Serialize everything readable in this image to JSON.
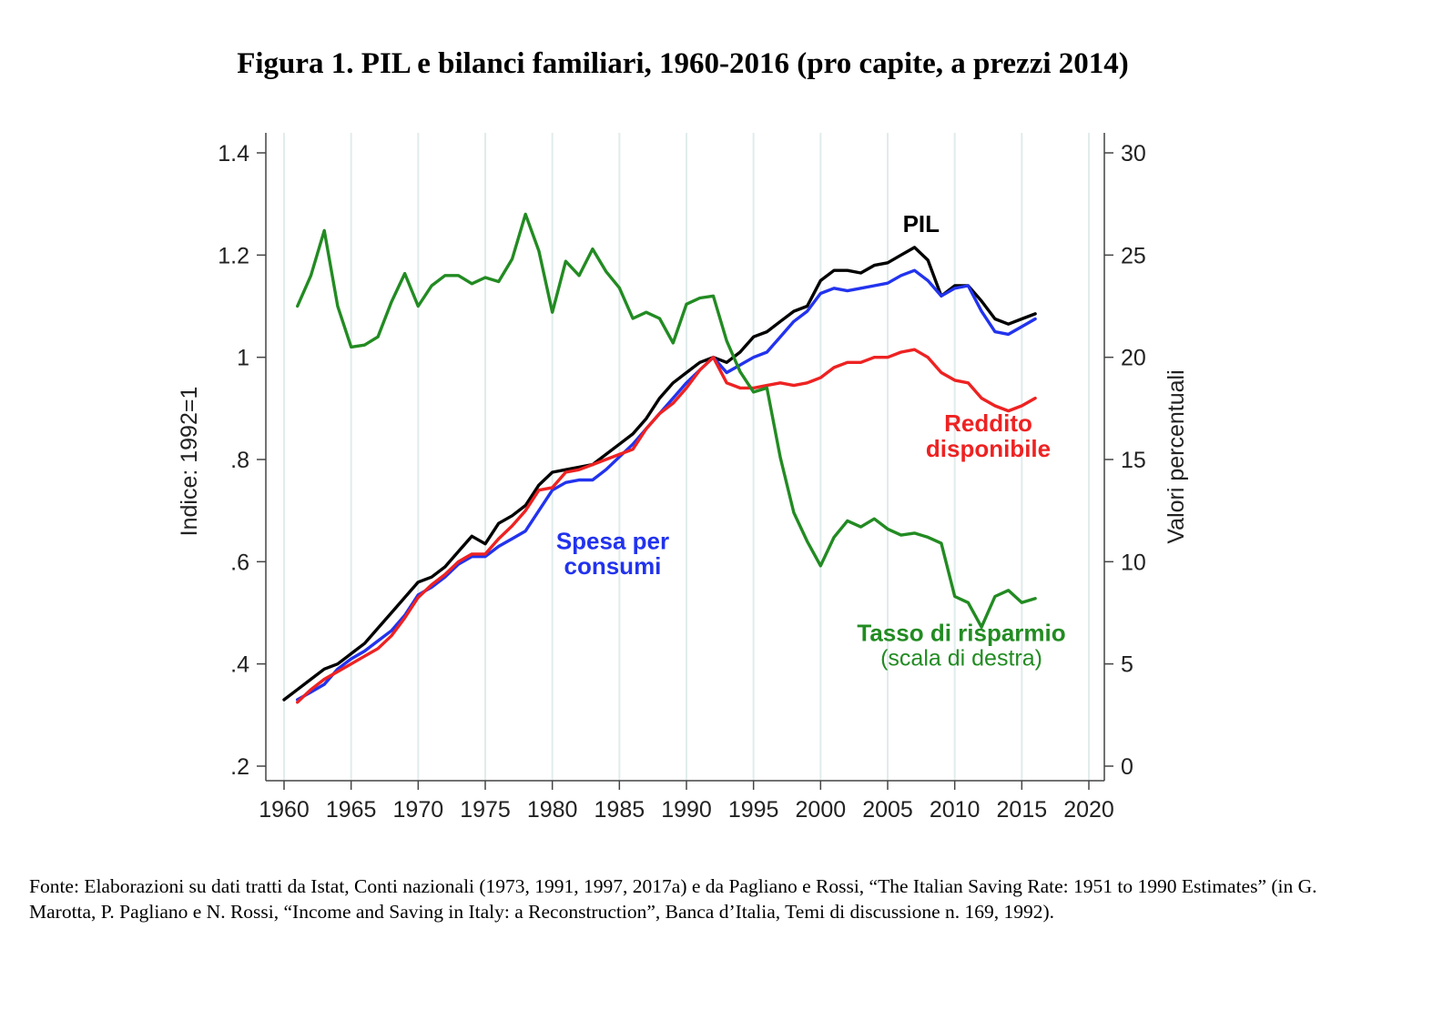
{
  "page": {
    "title": "Figura 1. PIL e bilanci familiari, 1960-2016 (pro capite, a prezzi 2014)",
    "source_note": "Fonte: Elaborazioni su dati tratti da Istat, Conti nazionali (1973, 1991, 1997, 2017a) e da Pagliano e Rossi, “The Italian Saving Rate: 1951 to 1990 Estimates” (in G. Marotta, P. Pagliano e N. Rossi, “Income and Saving in Italy: a Reconstruction”, Banca d’Italia, Temi di discussione n. 169, 1992)."
  },
  "chart_data": {
    "type": "line",
    "title": "Figura 1. PIL e bilanci familiari, 1960-2016 (pro capite, a prezzi 2014)",
    "xlabel": "",
    "ylabel": "Indice: 1992=1",
    "y2label": "Valori percentuali",
    "xlim": [
      1960,
      2020
    ],
    "ylim": [
      0.2,
      1.4
    ],
    "y2lim": [
      0,
      30
    ],
    "x_ticks": [
      1960,
      1965,
      1970,
      1975,
      1980,
      1985,
      1990,
      1995,
      2000,
      2005,
      2010,
      2015,
      2020
    ],
    "y_ticks": [
      {
        "value": 0.2,
        "label": ".2"
      },
      {
        "value": 0.4,
        "label": ".4"
      },
      {
        "value": 0.6,
        "label": ".6"
      },
      {
        "value": 0.8,
        "label": ".8"
      },
      {
        "value": 1.0,
        "label": "1"
      },
      {
        "value": 1.2,
        "label": "1.2"
      },
      {
        "value": 1.4,
        "label": "1.4"
      }
    ],
    "y2_ticks": [
      0,
      5,
      10,
      15,
      20,
      25,
      30
    ],
    "grid": "vertical",
    "legend": "none (inline labels)",
    "series": [
      {
        "name": "PIL",
        "color": "#000000",
        "axis": "left",
        "x": [
          1960,
          1961,
          1962,
          1963,
          1964,
          1965,
          1966,
          1967,
          1968,
          1969,
          1970,
          1971,
          1972,
          1973,
          1974,
          1975,
          1976,
          1977,
          1978,
          1979,
          1980,
          1981,
          1982,
          1983,
          1984,
          1985,
          1986,
          1987,
          1988,
          1989,
          1990,
          1991,
          1992,
          1993,
          1994,
          1995,
          1996,
          1997,
          1998,
          1999,
          2000,
          2001,
          2002,
          2003,
          2004,
          2005,
          2006,
          2007,
          2008,
          2009,
          2010,
          2011,
          2012,
          2013,
          2014,
          2015,
          2016
        ],
        "values": [
          0.33,
          0.35,
          0.37,
          0.39,
          0.4,
          0.42,
          0.44,
          0.47,
          0.5,
          0.53,
          0.56,
          0.57,
          0.59,
          0.62,
          0.65,
          0.635,
          0.675,
          0.69,
          0.71,
          0.75,
          0.775,
          0.78,
          0.785,
          0.79,
          0.81,
          0.83,
          0.85,
          0.88,
          0.92,
          0.95,
          0.97,
          0.99,
          1.0,
          0.99,
          1.01,
          1.04,
          1.05,
          1.07,
          1.09,
          1.1,
          1.15,
          1.17,
          1.17,
          1.165,
          1.18,
          1.185,
          1.2,
          1.215,
          1.19,
          1.12,
          1.14,
          1.14,
          1.11,
          1.075,
          1.065,
          1.075,
          1.085
        ]
      },
      {
        "name": "Spesa per consumi",
        "color": "#2233ee",
        "axis": "left",
        "x": [
          1961,
          1962,
          1963,
          1964,
          1965,
          1966,
          1967,
          1968,
          1969,
          1970,
          1971,
          1972,
          1973,
          1974,
          1975,
          1976,
          1977,
          1978,
          1979,
          1980,
          1981,
          1982,
          1983,
          1984,
          1985,
          1986,
          1987,
          1988,
          1989,
          1990,
          1991,
          1992,
          1993,
          1994,
          1995,
          1996,
          1997,
          1998,
          1999,
          2000,
          2001,
          2002,
          2003,
          2004,
          2005,
          2006,
          2007,
          2008,
          2009,
          2010,
          2011,
          2012,
          2013,
          2014,
          2015,
          2016
        ],
        "values": [
          0.33,
          0.345,
          0.36,
          0.39,
          0.41,
          0.425,
          0.445,
          0.465,
          0.495,
          0.535,
          0.55,
          0.57,
          0.595,
          0.61,
          0.61,
          0.63,
          0.645,
          0.66,
          0.7,
          0.74,
          0.755,
          0.76,
          0.76,
          0.78,
          0.805,
          0.83,
          0.86,
          0.89,
          0.92,
          0.95,
          0.975,
          1.0,
          0.97,
          0.985,
          1.0,
          1.01,
          1.04,
          1.07,
          1.09,
          1.125,
          1.135,
          1.13,
          1.135,
          1.14,
          1.145,
          1.16,
          1.17,
          1.15,
          1.12,
          1.135,
          1.14,
          1.09,
          1.05,
          1.045,
          1.06,
          1.075
        ]
      },
      {
        "name": "Reddito disponibile",
        "color": "#ee2222",
        "axis": "left",
        "x": [
          1961,
          1962,
          1963,
          1964,
          1965,
          1966,
          1967,
          1968,
          1969,
          1970,
          1971,
          1972,
          1973,
          1974,
          1975,
          1976,
          1977,
          1978,
          1979,
          1980,
          1981,
          1982,
          1983,
          1984,
          1985,
          1986,
          1987,
          1988,
          1989,
          1990,
          1991,
          1992,
          1993,
          1994,
          1995,
          1996,
          1997,
          1998,
          1999,
          2000,
          2001,
          2002,
          2003,
          2004,
          2005,
          2006,
          2007,
          2008,
          2009,
          2010,
          2011,
          2012,
          2013,
          2014,
          2015,
          2016
        ],
        "values": [
          0.325,
          0.35,
          0.37,
          0.385,
          0.4,
          0.415,
          0.43,
          0.455,
          0.49,
          0.53,
          0.555,
          0.575,
          0.6,
          0.615,
          0.615,
          0.645,
          0.67,
          0.7,
          0.74,
          0.745,
          0.775,
          0.78,
          0.79,
          0.8,
          0.81,
          0.82,
          0.86,
          0.89,
          0.91,
          0.94,
          0.975,
          1.0,
          0.95,
          0.94,
          0.94,
          0.945,
          0.95,
          0.945,
          0.95,
          0.96,
          0.98,
          0.99,
          0.99,
          1.0,
          1.0,
          1.01,
          1.015,
          1.0,
          0.97,
          0.955,
          0.95,
          0.92,
          0.905,
          0.895,
          0.905,
          0.92
        ]
      },
      {
        "name": "Tasso di risparmio",
        "color": "#228b22",
        "axis": "right",
        "x": [
          1961,
          1962,
          1963,
          1964,
          1965,
          1966,
          1967,
          1968,
          1969,
          1970,
          1971,
          1972,
          1973,
          1974,
          1975,
          1976,
          1977,
          1978,
          1979,
          1980,
          1981,
          1982,
          1983,
          1984,
          1985,
          1986,
          1987,
          1988,
          1989,
          1990,
          1991,
          1992,
          1993,
          1994,
          1995,
          1996,
          1997,
          1998,
          1999,
          2000,
          2001,
          2002,
          2003,
          2004,
          2005,
          2006,
          2007,
          2008,
          2009,
          2010,
          2011,
          2012,
          2013,
          2014,
          2015,
          2016
        ],
        "values": [
          22.5,
          24.0,
          26.2,
          22.5,
          20.5,
          20.6,
          21.0,
          22.7,
          24.1,
          22.5,
          23.5,
          24.0,
          24.0,
          23.6,
          23.9,
          23.7,
          24.8,
          27.0,
          25.2,
          22.2,
          24.7,
          24.0,
          25.3,
          24.2,
          23.4,
          21.9,
          22.2,
          21.9,
          20.7,
          22.6,
          22.9,
          23.0,
          20.8,
          19.3,
          18.3,
          18.5,
          15.1,
          12.4,
          11.0,
          9.8,
          11.2,
          12.0,
          11.7,
          12.1,
          11.6,
          11.3,
          11.4,
          11.2,
          10.9,
          8.3,
          8.0,
          6.8,
          8.3,
          8.6,
          8.0,
          8.2
        ]
      }
    ],
    "annotations": [
      {
        "text": "PIL",
        "color": "#000000",
        "style": "bold",
        "x": 2007.5,
        "y": 1.245
      },
      {
        "text": "Reddito",
        "color": "#ee2222",
        "style": "bold",
        "x": 2012.5,
        "y": 0.855
      },
      {
        "text": "disponibile",
        "color": "#ee2222",
        "style": "bold",
        "x": 2012.5,
        "y": 0.805
      },
      {
        "text": "Spesa per",
        "color": "#2233ee",
        "style": "bold",
        "x": 1984.5,
        "y": 0.625
      },
      {
        "text": "consumi",
        "color": "#2233ee",
        "style": "bold",
        "x": 1984.5,
        "y": 0.576
      },
      {
        "text": "Tasso di risparmio",
        "color": "#228b22",
        "style": "bold",
        "x": 2010.5,
        "y": 0.445
      },
      {
        "text": "(scala di destra)",
        "color": "#228b22",
        "style": "normal",
        "x": 2010.5,
        "y": 0.397
      }
    ]
  }
}
